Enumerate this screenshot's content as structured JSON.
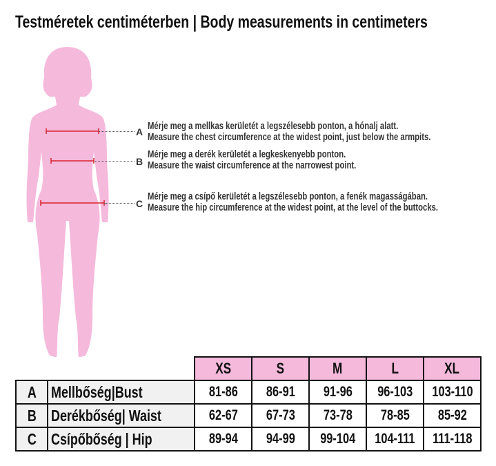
{
  "title": "Testméretek centiméterben | Body measurements in centimeters",
  "figure_color": "#f5b9dc",
  "line_color": "#d9232e",
  "instructions": [
    {
      "letter": "A",
      "hu": "Mérje meg a mellkas kerületét a legszélesebb ponton, a hónalj alatt.",
      "en": "Measure the chest circumference at the widest point, just below the armpits."
    },
    {
      "letter": "B",
      "hu": "Mérje meg a derék kerületét a legkeskenyebb ponton.",
      "en": "Measure the waist circumference at the narrowest point."
    },
    {
      "letter": "C",
      "hu": "Mérje meg a csípő kerületét a legszélesebb ponton, a fenék magasságában.",
      "en": "Measure the hip circumference at the widest point, at the level of the buttocks."
    }
  ],
  "table": {
    "sizes": [
      "XS",
      "S",
      "M",
      "L",
      "XL"
    ],
    "rows": [
      {
        "letter": "A",
        "label": "Mellbőség|Bust",
        "values": [
          "81-86",
          "86-91",
          "91-96",
          "96-103",
          "103-110"
        ]
      },
      {
        "letter": "B",
        "label": "Derékbőség| Waist",
        "values": [
          "62-67",
          "67-73",
          "73-78",
          "78-85",
          "85-92"
        ]
      },
      {
        "letter": "C",
        "label": "Csípőbőség | Hip",
        "values": [
          "89-94",
          "94-99",
          "99-104",
          "104-111",
          "111-118"
        ]
      }
    ]
  }
}
